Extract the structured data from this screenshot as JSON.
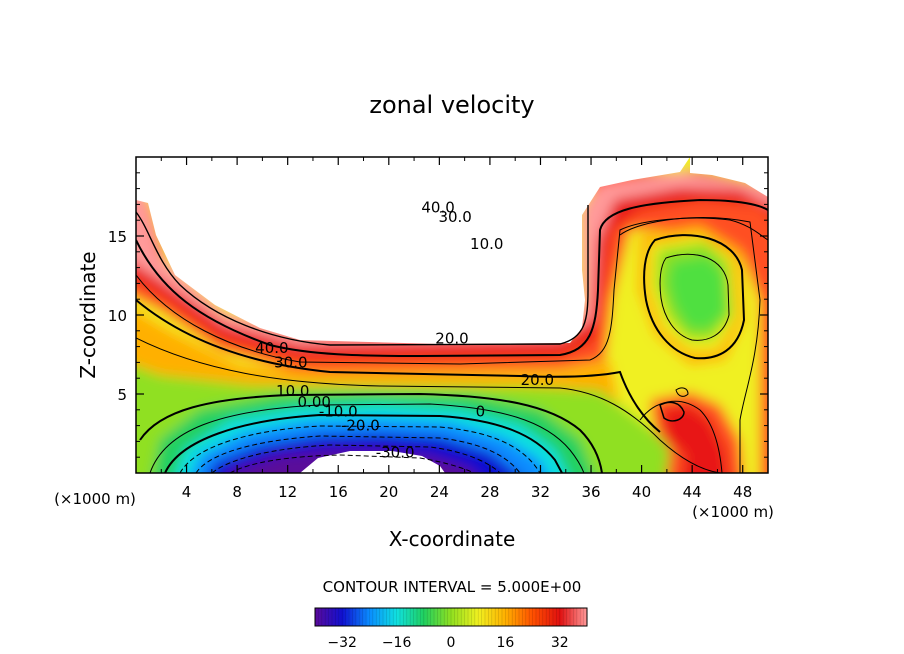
{
  "chart_data": {
    "type": "heatmap",
    "title": "zonal velocity",
    "xlabel": "X-coordinate",
    "ylabel": "Z-coordinate",
    "x_unit": "(×1000 m)",
    "z_unit": "(×1000 m)",
    "xlim": [
      0,
      50
    ],
    "ylim": [
      0,
      20
    ],
    "x_ticks": [
      "4",
      "8",
      "12",
      "16",
      "20",
      "24",
      "28",
      "32",
      "36",
      "40",
      "44",
      "48"
    ],
    "y_ticks": [
      "5",
      "10",
      "15"
    ],
    "contour_interval_text": "CONTOUR INTERVAL = 5.000E+00",
    "colorbar": {
      "ticks": [
        "-32",
        "-16",
        "0",
        "16",
        "32"
      ],
      "range": [
        -40,
        40
      ],
      "colors": [
        "#5a0a9a",
        "#1010d0",
        "#0a8cff",
        "#10e0e0",
        "#20d060",
        "#90e020",
        "#f0f020",
        "#ffb000",
        "#ff5000",
        "#e01010",
        "#ff9a9a"
      ]
    },
    "contour_labels": [
      {
        "text": "40.0",
        "x": 21.5,
        "z": 7.9
      },
      {
        "text": "30.0",
        "x": 24.5,
        "z": 7.0
      },
      {
        "text": "20.0",
        "x": 63.5,
        "z": 5.9
      },
      {
        "text": "10.0",
        "x": 24.8,
        "z": 5.2
      },
      {
        "text": "0.00",
        "x": 28.2,
        "z": 4.5
      },
      {
        "text": "-10.0",
        "x": 32.0,
        "z": 3.9
      },
      {
        "text": "-20.0",
        "x": 35.5,
        "z": 3.0
      },
      {
        "text": "-30.0",
        "x": 41.0,
        "z": 1.3
      },
      {
        "text": "40.0",
        "x": 47.8,
        "z": 16.8
      },
      {
        "text": "30.0",
        "x": 50.5,
        "z": 16.2
      },
      {
        "text": "10.0",
        "x": 55.5,
        "z": 14.5
      },
      {
        "text": "20.0",
        "x": 50.0,
        "z": 8.5
      },
      {
        "text": "0",
        "x": 54.5,
        "z": 3.9
      }
    ]
  }
}
